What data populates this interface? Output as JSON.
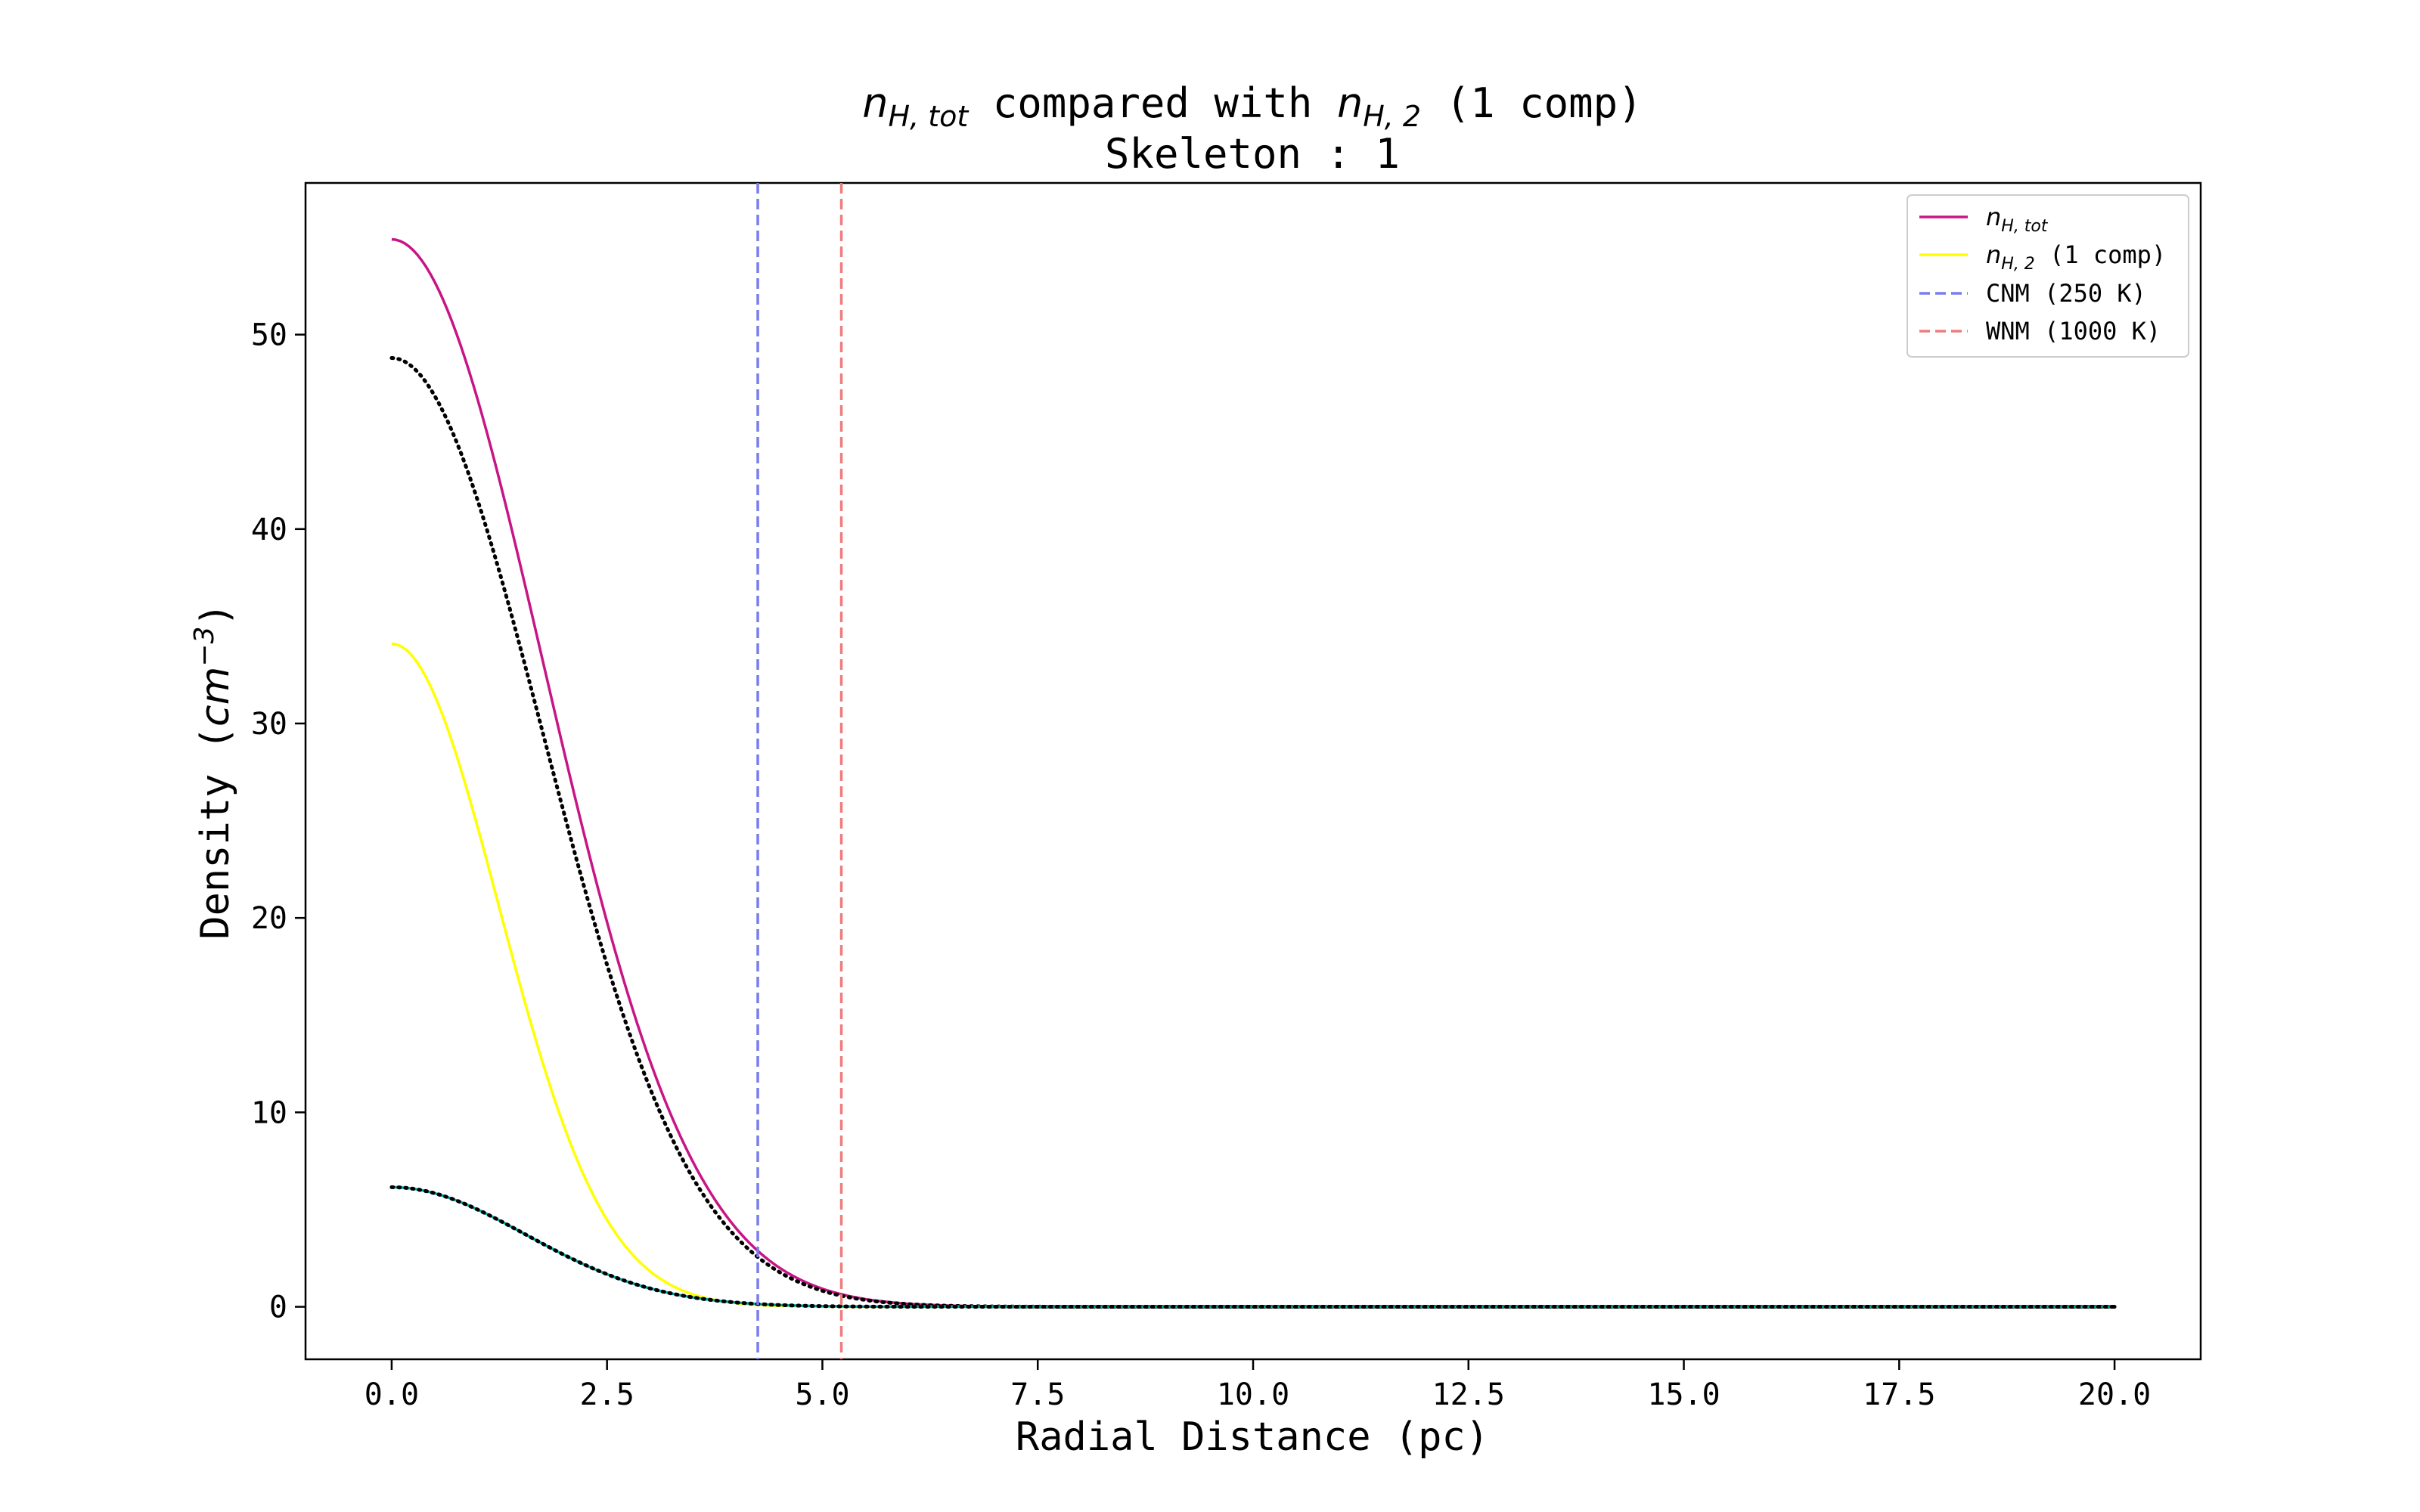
{
  "chart_data": {
    "type": "line",
    "title": {
      "line1_parts": {
        "sym_n": "n",
        "sub_tot": "H, tot",
        "mid_text": " compared with ",
        "sub_h2": "H, 2",
        "end_text": " (1 comp)"
      },
      "line2": "Skeleton : 1"
    },
    "xlabel": "Radial Distance (pc)",
    "ylabel": {
      "prefix": "Density (",
      "unit": "cm",
      "exponent": "−3",
      "suffix": ")"
    },
    "xlim": [
      -1.0,
      21.0
    ],
    "ylim": [
      -2.7,
      57.8
    ],
    "xticks": [
      0.0,
      2.5,
      5.0,
      7.5,
      10.0,
      12.5,
      15.0,
      17.5,
      20.0
    ],
    "xtick_labels": [
      "0.0",
      "2.5",
      "5.0",
      "7.5",
      "10.0",
      "12.5",
      "15.0",
      "17.5",
      "20.0"
    ],
    "yticks": [
      0,
      10,
      20,
      30,
      40,
      50
    ],
    "ytick_labels": [
      "0",
      "10",
      "20",
      "30",
      "40",
      "50"
    ],
    "grid": false,
    "legend_position": "top-right",
    "legend": {
      "ntot": {
        "sym": "n",
        "sub": "H, tot",
        "rest": ""
      },
      "nh2": {
        "sym": "n",
        "sub": "H, 2",
        "rest": " (1 comp)"
      },
      "cnm": "CNM (250 K)",
      "wnm": "WNM (1000 K)"
    },
    "series": [
      {
        "id": "ntot",
        "amplitude": 54.9,
        "sigma": 1.75,
        "x_range": [
          0,
          20
        ],
        "color": "#c71585",
        "style": "solid"
      },
      {
        "id": "fit-dotted",
        "amplitude": 48.8,
        "sigma": 1.75,
        "x_range": [
          0,
          20
        ],
        "color": "#000000",
        "style": "dotted"
      },
      {
        "id": "nh2",
        "amplitude": 34.1,
        "sigma": 1.24,
        "x_range": [
          0,
          20
        ],
        "color": "#ffff00",
        "style": "solid"
      },
      {
        "id": "small-comp",
        "amplitude": 6.15,
        "sigma": 1.55,
        "x_range": [
          0,
          20
        ],
        "color": "#00b3b3",
        "style": "solid"
      },
      {
        "id": "small-comp-fit",
        "amplitude": 6.15,
        "sigma": 1.55,
        "x_range": [
          0,
          20
        ],
        "color": "#000000",
        "style": "dotted"
      }
    ],
    "vlines": [
      {
        "id": "cnm",
        "x": 4.25,
        "color": "#7b7bf0",
        "style": "dashed"
      },
      {
        "id": "wnm",
        "x": 5.22,
        "color": "#f07b7b",
        "style": "dashed"
      }
    ]
  }
}
